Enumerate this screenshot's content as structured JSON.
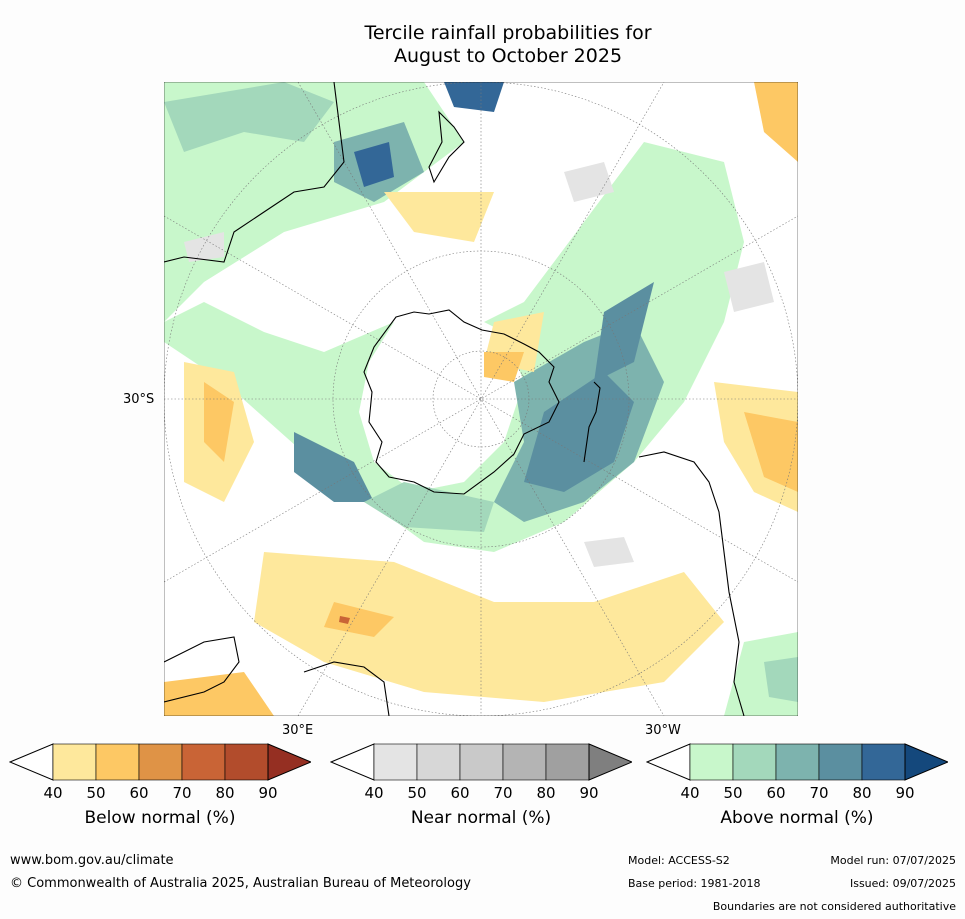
{
  "title_line1": "Tercile rainfall probabilities for",
  "title_line2": "August to October 2025",
  "map": {
    "projection": "south polar stereographic",
    "lat_label": "30°S",
    "lon_label_east": "30°E",
    "lon_label_west": "30°W"
  },
  "colorbars": [
    {
      "label": "Below normal (%)",
      "ticks": [
        "40",
        "50",
        "60",
        "70",
        "80",
        "90"
      ],
      "colors": [
        "#ffffff",
        "#fee89c",
        "#fdc864",
        "#df9346",
        "#c96436",
        "#b24c2c",
        "#952f22"
      ]
    },
    {
      "label": "Near normal (%)",
      "ticks": [
        "40",
        "50",
        "60",
        "70",
        "80",
        "90"
      ],
      "colors": [
        "#ffffff",
        "#e4e4e4",
        "#d7d7d7",
        "#c9c9c9",
        "#b4b4b4",
        "#a0a0a0",
        "#7f7f7f"
      ]
    },
    {
      "label": "Above normal (%)",
      "ticks": [
        "40",
        "50",
        "60",
        "70",
        "80",
        "90"
      ],
      "colors": [
        "#ffffff",
        "#c8f7cb",
        "#a3d8bb",
        "#7db3ae",
        "#5b8fa0",
        "#336797",
        "#14487c"
      ]
    }
  ],
  "footer": {
    "website": "www.bom.gov.au/climate",
    "copyright": "© Commonwealth of Australia 2025, Australian Bureau of Meteorology",
    "model": "Model: ACCESS-S2",
    "base_period": "Base period: 1981-2018",
    "model_run": "Model run: 07/07/2025",
    "issued": "Issued: 09/07/2025",
    "disclaimer": "Boundaries are not considered authoritative"
  }
}
